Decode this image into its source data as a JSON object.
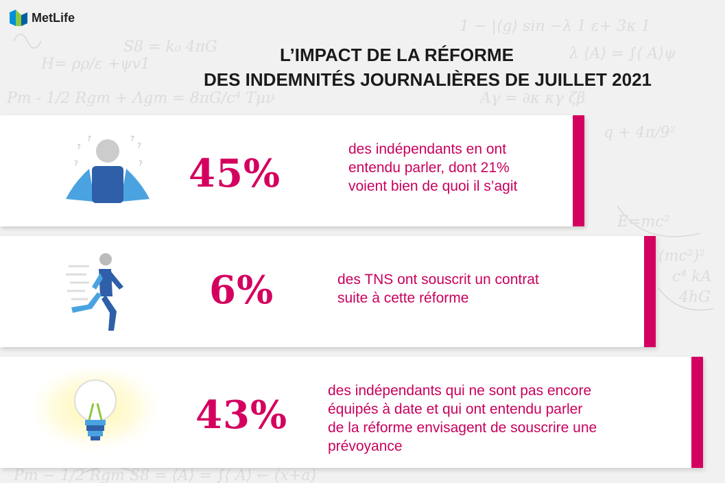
{
  "brand": {
    "name": "MetLife",
    "colors": {
      "accent": "#d4005f",
      "blue": "#2e5fa8",
      "lightblue": "#4aa3e0",
      "green": "#8dc63f"
    }
  },
  "title": {
    "line1": "L’IMPACT DE LA RÉFORME",
    "line2": "DES INDEMNITÉS JOURNALIÈRES DE JUILLET 2021"
  },
  "stats": [
    {
      "percent": "45%",
      "value": 45,
      "icon": "confused-person-icon",
      "text": [
        "des indépendants en ont",
        "entendu parler, dont 21%",
        "voient bien de quoi il s’agit"
      ]
    },
    {
      "percent": "6%",
      "value": 6,
      "icon": "running-person-icon",
      "text": [
        "des TNS ont souscrit un contrat",
        "suite à cette réforme"
      ]
    },
    {
      "percent": "43%",
      "value": 43,
      "icon": "lightbulb-icon",
      "text": [
        "des indépendants qui ne sont pas encore",
        "équipés à date et qui ont entendu parler",
        "de la réforme envisagent de souscrire une",
        "prévoyance"
      ]
    }
  ]
}
